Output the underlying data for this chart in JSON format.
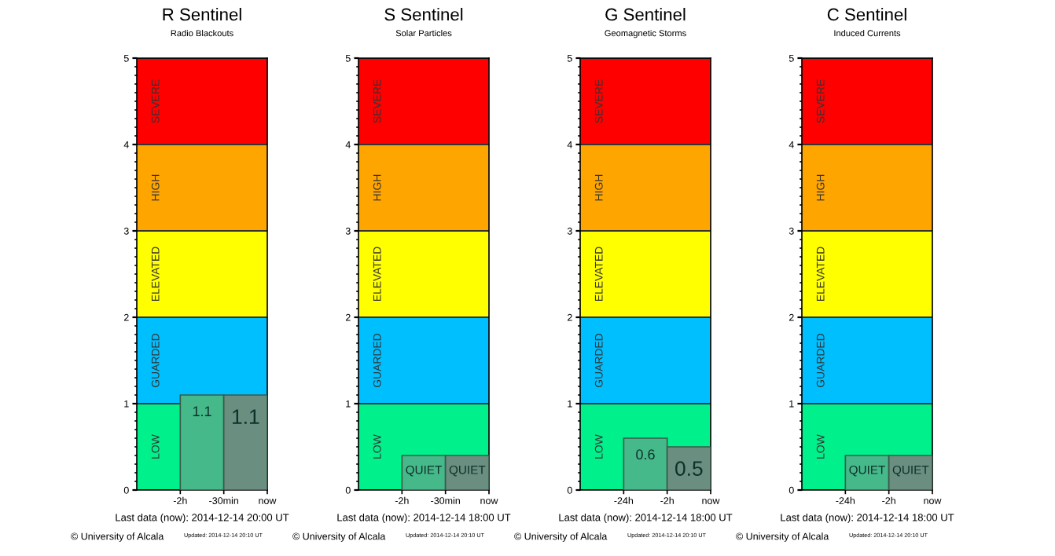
{
  "chart_data": [
    {
      "type": "bar",
      "title": "R Sentinel",
      "subtitle": "Radio Blackouts",
      "categories": [
        null,
        null,
        null
      ],
      "values": [
        null,
        1.1,
        1.1
      ],
      "colors": [
        "#45b98a",
        "#45b98a",
        "#6a8f80"
      ],
      "value_labels": [
        null,
        "1.1",
        "1.1"
      ],
      "ylim": [
        0,
        5
      ],
      "yticks": [
        0,
        1,
        2,
        3,
        4,
        5
      ],
      "grid": "y",
      "tick_labels": "y",
      "bands": [
        {
          "axis": "y",
          "from": 0,
          "to": 1,
          "label": "LOW",
          "color": "#00f08c"
        },
        {
          "axis": "y",
          "from": 1,
          "to": 2,
          "label": "GUARDED",
          "color": "#00bfff"
        },
        {
          "axis": "y",
          "from": 2,
          "to": 3,
          "label": "ELEVATED",
          "color": "#ffff00"
        },
        {
          "axis": "y",
          "from": 3,
          "to": 4,
          "label": "HIGH",
          "color": "#ffa500"
        },
        {
          "axis": "y",
          "from": 4,
          "to": 5,
          "label": "SEVERE",
          "color": "#ff0000"
        }
      ],
      "annotations": [
        "Last data (now): 2014-12-14 20:00 UT",
        "© University of Alcala",
        "Updated: 2014-12-14 20:10 UT",
        "-2h",
        "-30min",
        "now"
      ]
    },
    {
      "type": "bar",
      "title": "S Sentinel",
      "subtitle": "Solar Particles",
      "categories": [
        null,
        null,
        null
      ],
      "values": [
        null,
        0.4,
        0.4
      ],
      "colors": [
        "#45b98a",
        "#45b98a",
        "#6a8f80"
      ],
      "value_labels": [
        null,
        "QUIET",
        "QUIET"
      ],
      "ylim": [
        0,
        5
      ],
      "yticks": [
        0,
        1,
        2,
        3,
        4,
        5
      ],
      "grid": "y",
      "tick_labels": "y",
      "bands": [
        {
          "axis": "y",
          "from": 0,
          "to": 1,
          "label": "LOW",
          "color": "#00f08c"
        },
        {
          "axis": "y",
          "from": 1,
          "to": 2,
          "label": "GUARDED",
          "color": "#00bfff"
        },
        {
          "axis": "y",
          "from": 2,
          "to": 3,
          "label": "ELEVATED",
          "color": "#ffff00"
        },
        {
          "axis": "y",
          "from": 3,
          "to": 4,
          "label": "HIGH",
          "color": "#ffa500"
        },
        {
          "axis": "y",
          "from": 4,
          "to": 5,
          "label": "SEVERE",
          "color": "#ff0000"
        }
      ],
      "annotations": [
        "Last data (now): 2014-12-14 18:00 UT",
        "© University of Alcala",
        "Updated: 2014-12-14 20:10 UT",
        "-2h",
        "-30min",
        "now"
      ]
    },
    {
      "type": "bar",
      "title": "G Sentinel",
      "subtitle": "Geomagnetic Storms",
      "categories": [
        null,
        null,
        null
      ],
      "values": [
        null,
        0.6,
        0.5
      ],
      "colors": [
        "#45b98a",
        "#45b98a",
        "#6a8f80"
      ],
      "value_labels": [
        null,
        "0.6",
        "0.5"
      ],
      "ylim": [
        0,
        5
      ],
      "yticks": [
        0,
        1,
        2,
        3,
        4,
        5
      ],
      "grid": "y",
      "tick_labels": "y",
      "bands": [
        {
          "axis": "y",
          "from": 0,
          "to": 1,
          "label": "LOW",
          "color": "#00f08c"
        },
        {
          "axis": "y",
          "from": 1,
          "to": 2,
          "label": "GUARDED",
          "color": "#00bfff"
        },
        {
          "axis": "y",
          "from": 2,
          "to": 3,
          "label": "ELEVATED",
          "color": "#ffff00"
        },
        {
          "axis": "y",
          "from": 3,
          "to": 4,
          "label": "HIGH",
          "color": "#ffa500"
        },
        {
          "axis": "y",
          "from": 4,
          "to": 5,
          "label": "SEVERE",
          "color": "#ff0000"
        }
      ],
      "annotations": [
        "Last data (now): 2014-12-14 18:00 UT",
        "© University of Alcala",
        "Updated: 2014-12-14 20:10 UT",
        "-24h",
        "-2h",
        "now"
      ]
    },
    {
      "type": "bar",
      "title": "C Sentinel",
      "subtitle": "Induced Currents",
      "categories": [
        null,
        null,
        null
      ],
      "values": [
        null,
        0.4,
        0.4
      ],
      "colors": [
        "#45b98a",
        "#45b98a",
        "#6a8f80"
      ],
      "value_labels": [
        null,
        "QUIET",
        "QUIET"
      ],
      "ylim": [
        0,
        5
      ],
      "yticks": [
        0,
        1,
        2,
        3,
        4,
        5
      ],
      "grid": "y",
      "tick_labels": "y",
      "bands": [
        {
          "axis": "y",
          "from": 0,
          "to": 1,
          "label": "LOW",
          "color": "#00f08c"
        },
        {
          "axis": "y",
          "from": 1,
          "to": 2,
          "label": "GUARDED",
          "color": "#00bfff"
        },
        {
          "axis": "y",
          "from": 2,
          "to": 3,
          "label": "ELEVATED",
          "color": "#ffff00"
        },
        {
          "axis": "y",
          "from": 3,
          "to": 4,
          "label": "HIGH",
          "color": "#ffa500"
        },
        {
          "axis": "y",
          "from": 4,
          "to": 5,
          "label": "SEVERE",
          "color": "#ff0000"
        }
      ],
      "annotations": [
        "Last data (now): 2014-12-14 18:00 UT",
        "© University of Alcala",
        "Updated: 2014-12-14 20:10 UT",
        "-24h",
        "-2h",
        "now"
      ]
    }
  ]
}
